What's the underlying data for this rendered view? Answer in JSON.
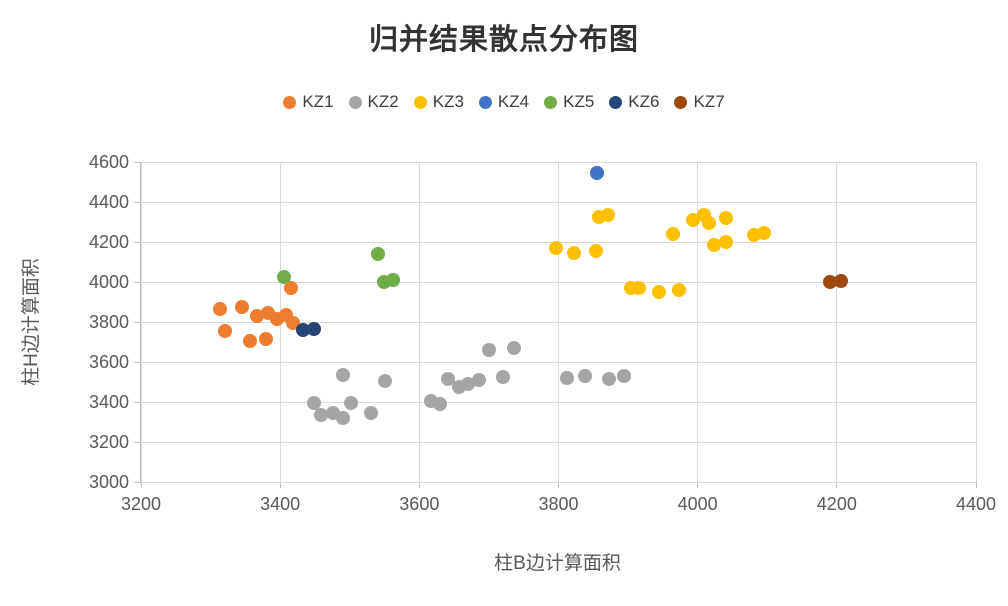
{
  "title": "归并结果散点分布图",
  "legend": {
    "position": "top",
    "items": [
      {
        "label": "KZ1",
        "color": "#ED7D31"
      },
      {
        "label": "KZ2",
        "color": "#A5A5A5"
      },
      {
        "label": "KZ3",
        "color": "#FFC000"
      },
      {
        "label": "KZ4",
        "color": "#4472C4"
      },
      {
        "label": "KZ5",
        "color": "#70AD47"
      },
      {
        "label": "KZ6",
        "color": "#264478"
      },
      {
        "label": "KZ7",
        "color": "#9E480E"
      }
    ]
  },
  "chart_data": {
    "type": "scatter",
    "title": "归并结果散点分布图",
    "xlabel": "柱B边计算面积",
    "ylabel": "柱H边计算面积",
    "xlim": [
      3200,
      4400
    ],
    "ylim": [
      3000,
      4600
    ],
    "x_ticks": [
      3200,
      3400,
      3600,
      3800,
      4000,
      4200,
      4400
    ],
    "y_ticks": [
      3000,
      3200,
      3400,
      3600,
      3800,
      4000,
      4200,
      4400,
      4600
    ],
    "grid": true,
    "legend_position": "top",
    "series": [
      {
        "name": "KZ1",
        "color": "#ED7D31",
        "points": [
          [
            3313,
            3866
          ],
          [
            3345,
            3876
          ],
          [
            3320,
            3756
          ],
          [
            3357,
            3705
          ],
          [
            3380,
            3716
          ],
          [
            3366,
            3831
          ],
          [
            3382,
            3845
          ],
          [
            3395,
            3815
          ],
          [
            3408,
            3833
          ],
          [
            3418,
            3795
          ],
          [
            3415,
            3972
          ]
        ]
      },
      {
        "name": "KZ2",
        "color": "#A5A5A5",
        "points": [
          [
            3449,
            3395
          ],
          [
            3459,
            3335
          ],
          [
            3476,
            3347
          ],
          [
            3490,
            3320
          ],
          [
            3502,
            3395
          ],
          [
            3530,
            3347
          ],
          [
            3490,
            3535
          ],
          [
            3550,
            3505
          ],
          [
            3617,
            3405
          ],
          [
            3630,
            3390
          ],
          [
            3641,
            3515
          ],
          [
            3657,
            3475
          ],
          [
            3670,
            3490
          ],
          [
            3686,
            3510
          ],
          [
            3720,
            3525
          ],
          [
            3700,
            3660
          ],
          [
            3736,
            3670
          ],
          [
            3812,
            3520
          ],
          [
            3838,
            3530
          ],
          [
            3873,
            3515
          ],
          [
            3894,
            3530
          ]
        ]
      },
      {
        "name": "KZ3",
        "color": "#FFC000",
        "points": [
          [
            3796,
            4170
          ],
          [
            3822,
            4145
          ],
          [
            3854,
            4155
          ],
          [
            3858,
            4325
          ],
          [
            3871,
            4337
          ],
          [
            3904,
            3970
          ],
          [
            3916,
            3972
          ],
          [
            3945,
            3950
          ],
          [
            3973,
            3962
          ],
          [
            3964,
            4240
          ],
          [
            3993,
            4310
          ],
          [
            4009,
            4335
          ],
          [
            4016,
            4295
          ],
          [
            4040,
            4320
          ],
          [
            4023,
            4185
          ],
          [
            4040,
            4200
          ],
          [
            4081,
            4235
          ],
          [
            4096,
            4245
          ]
        ]
      },
      {
        "name": "KZ4",
        "color": "#4472C4",
        "points": [
          [
            3855,
            4545
          ]
        ]
      },
      {
        "name": "KZ5",
        "color": "#70AD47",
        "points": [
          [
            3405,
            4025
          ],
          [
            3540,
            4140
          ],
          [
            3549,
            4000
          ],
          [
            3562,
            4012
          ]
        ]
      },
      {
        "name": "KZ6",
        "color": "#264478",
        "points": [
          [
            3433,
            3762
          ],
          [
            3448,
            3763
          ]
        ]
      },
      {
        "name": "KZ7",
        "color": "#9E480E",
        "points": [
          [
            4190,
            4002
          ],
          [
            4206,
            4005
          ]
        ]
      }
    ]
  }
}
